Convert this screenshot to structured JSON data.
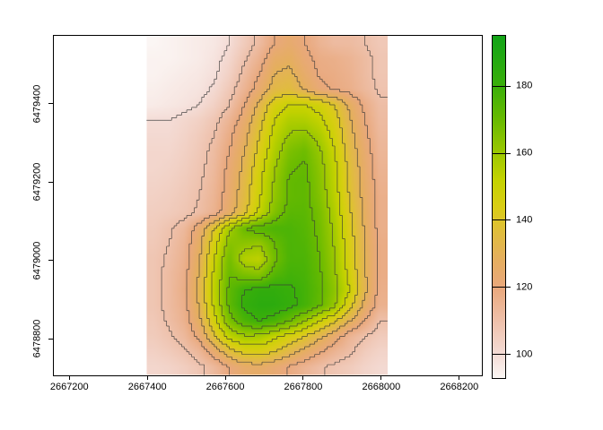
{
  "figure": {
    "background": "#ffffff"
  },
  "chart_data": {
    "type": "heatmap",
    "title": "",
    "xlabel": "",
    "ylabel": "",
    "grid": "off",
    "x_axis": {
      "range": [
        2667158,
        2668258
      ],
      "ticks": [
        2667200,
        2667400,
        2667600,
        2667800,
        2668000,
        2668200
      ],
      "labels": [
        "2667200",
        "2667400",
        "2667600",
        "2667800",
        "2668000",
        "2668200"
      ]
    },
    "y_axis": {
      "range": [
        6478707,
        6479576
      ],
      "ticks": [
        6479400,
        6479200,
        6479000,
        6478800
      ],
      "labels": [
        "6479400",
        "6479200",
        "6479000",
        "6478800"
      ]
    },
    "raster": {
      "extent": {
        "xmin": 2667398,
        "xmax": 2668016,
        "ymin": 6478708,
        "ymax": 6479575
      },
      "ncols": 16,
      "nrows": 22,
      "row_order": "top-to-bottom",
      "values": [
        [
          93,
          94,
          95,
          96,
          97,
          100,
          106,
          112,
          120,
          124,
          120,
          115,
          112,
          112,
          110,
          107
        ],
        [
          94,
          94,
          95,
          96,
          98,
          102,
          109,
          116,
          126,
          128,
          122,
          118,
          117,
          115,
          112,
          108
        ],
        [
          94,
          95,
          96,
          97,
          99,
          104,
          112,
          120,
          130,
          132,
          125,
          119,
          118,
          116,
          112,
          108
        ],
        [
          95,
          96,
          97,
          98,
          101,
          107,
          115,
          124,
          134,
          136,
          129,
          122,
          119,
          117,
          113,
          109
        ],
        [
          96,
          97,
          98,
          100,
          104,
          110,
          120,
          132,
          145,
          150,
          150,
          147,
          140,
          128,
          118,
          111
        ],
        [
          100,
          100,
          102,
          104,
          108,
          115,
          124,
          137,
          150,
          156,
          156,
          152,
          144,
          131,
          120,
          112
        ],
        [
          101,
          101,
          103,
          106,
          110,
          118,
          127,
          140,
          153,
          161,
          163,
          157,
          147,
          133,
          122,
          113
        ],
        [
          102,
          102,
          104,
          107,
          112,
          120,
          130,
          143,
          156,
          166,
          169,
          161,
          150,
          135,
          124,
          114
        ],
        [
          102,
          103,
          105,
          108,
          113,
          122,
          132,
          146,
          159,
          169,
          171,
          163,
          152,
          137,
          125,
          115
        ],
        [
          103,
          104,
          106,
          109,
          114,
          123,
          134,
          148,
          161,
          171,
          172,
          164,
          153,
          138,
          126,
          116
        ],
        [
          104,
          105,
          107,
          110,
          115,
          124,
          135,
          149,
          162,
          171,
          172,
          165,
          154,
          139,
          127,
          117
        ],
        [
          105,
          106,
          108,
          111,
          116,
          126,
          138,
          152,
          165,
          173,
          173,
          167,
          156,
          141,
          128,
          117
        ],
        [
          106,
          109,
          113,
          124,
          140,
          158,
          170,
          174,
          176,
          176,
          174,
          168,
          158,
          143,
          129,
          117
        ],
        [
          107,
          110,
          115,
          127,
          146,
          164,
          163,
          161,
          170,
          176,
          175,
          169,
          159,
          144,
          130,
          118
        ],
        [
          108,
          111,
          116,
          129,
          150,
          168,
          155,
          153,
          168,
          176,
          176,
          170,
          160,
          145,
          131,
          118
        ],
        [
          108,
          112,
          117,
          131,
          152,
          170,
          166,
          164,
          174,
          178,
          177,
          171,
          161,
          147,
          131,
          118
        ],
        [
          108,
          112,
          118,
          132,
          153,
          172,
          180,
          183,
          183,
          181,
          178,
          172,
          163,
          150,
          132,
          117
        ],
        [
          108,
          112,
          117,
          131,
          152,
          172,
          182,
          185,
          185,
          182,
          178,
          171,
          161,
          143,
          127,
          116
        ],
        [
          107,
          111,
          116,
          128,
          147,
          166,
          176,
          180,
          177,
          170,
          161,
          150,
          141,
          130,
          120,
          110
        ],
        [
          106,
          109,
          113,
          122,
          138,
          153,
          159,
          158,
          152,
          146,
          140,
          132,
          124,
          115,
          110,
          106
        ],
        [
          104,
          106,
          109,
          114,
          124,
          136,
          143,
          144,
          140,
          133,
          127,
          121,
          115,
          111,
          106,
          103
        ],
        [
          102,
          103,
          105,
          108,
          113,
          120,
          125,
          126,
          123,
          119,
          115,
          111,
          108,
          106,
          103,
          101
        ]
      ]
    },
    "contour_levels": [
      100,
      110,
      120,
      130,
      140,
      150,
      160,
      170,
      180,
      190
    ],
    "contour_color": "#3a3a3a",
    "colormap": {
      "stops": [
        [
          93,
          "#fbf6f4"
        ],
        [
          100,
          "#f4dcd6"
        ],
        [
          110,
          "#eec0aa"
        ],
        [
          120,
          "#e9a87c"
        ],
        [
          128,
          "#e5ae60"
        ],
        [
          136,
          "#e0bc3e"
        ],
        [
          144,
          "#d9cd14"
        ],
        [
          152,
          "#c4d200"
        ],
        [
          160,
          "#9cc800"
        ],
        [
          170,
          "#68ba00"
        ],
        [
          180,
          "#3aaf0a"
        ],
        [
          190,
          "#1ea713"
        ],
        [
          196,
          "#12a317"
        ]
      ]
    },
    "legend": {
      "position": "right",
      "range": [
        93,
        195
      ],
      "ticks": [
        100,
        120,
        140,
        160,
        180
      ],
      "labels": [
        "100",
        "120",
        "140",
        "160",
        "180"
      ]
    }
  }
}
